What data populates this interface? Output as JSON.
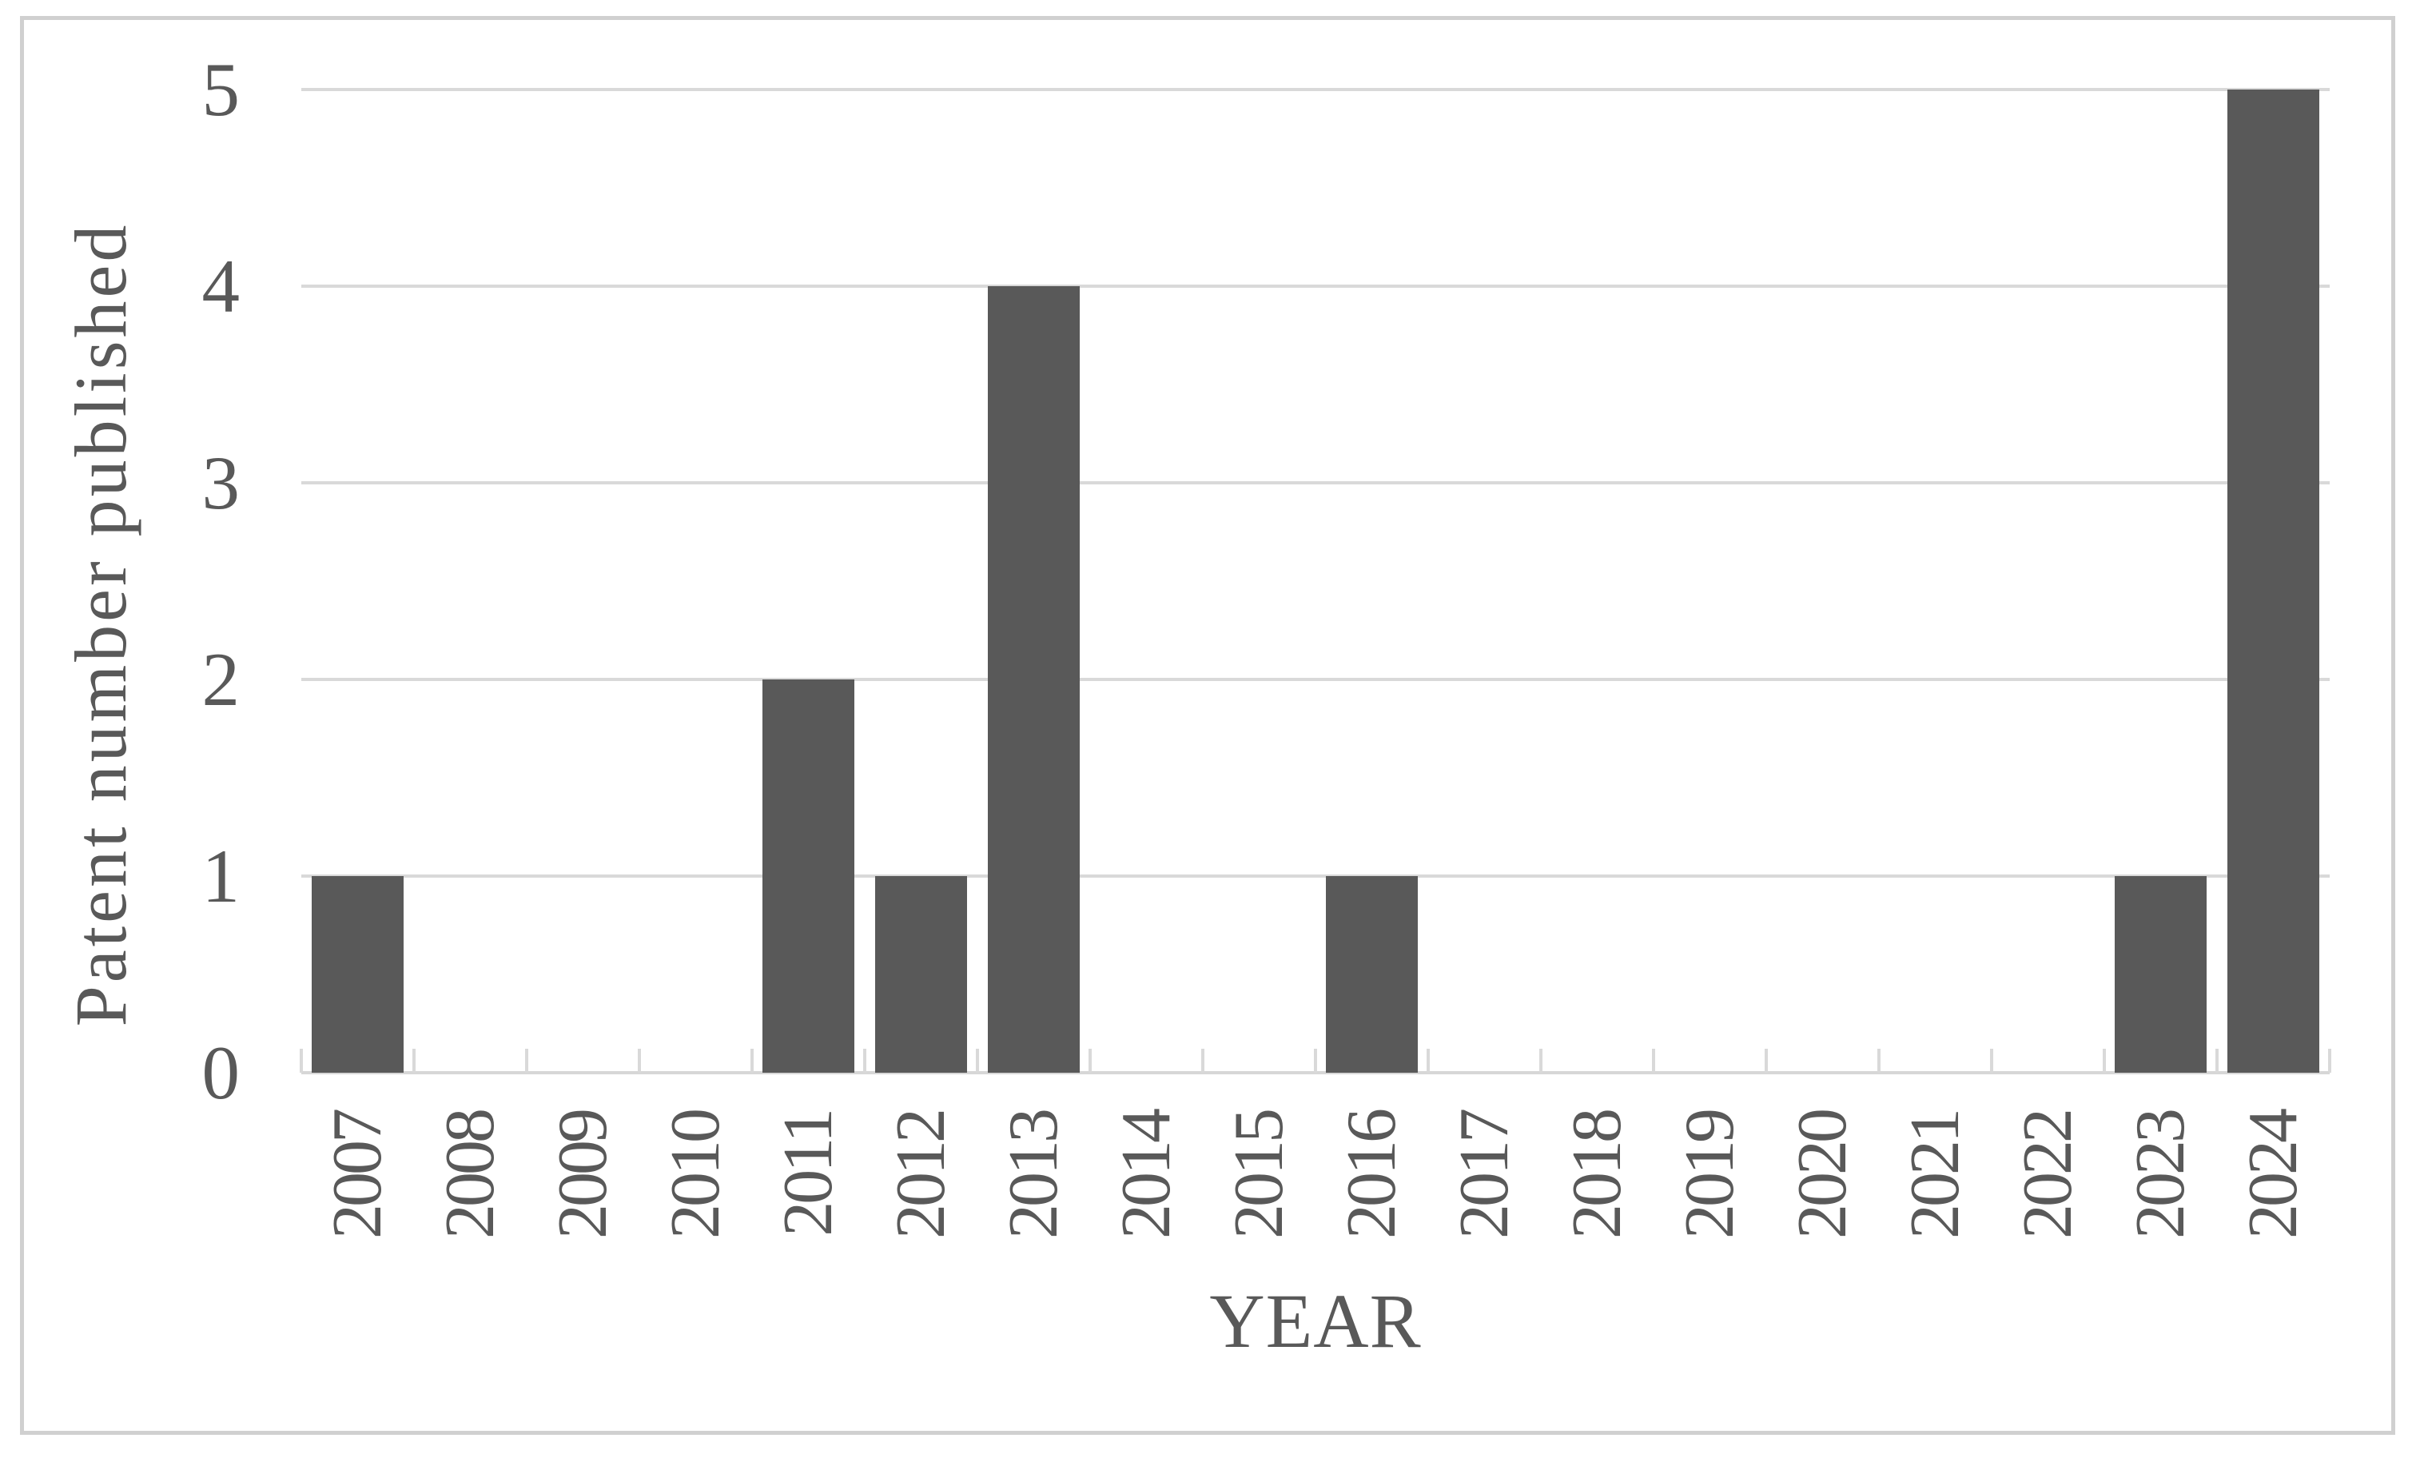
{
  "figure": {
    "background": "#ffffff",
    "border_color": "#d0d0d0"
  },
  "chart_data": {
    "type": "bar",
    "title": "",
    "xlabel": "YEAR",
    "ylabel": "Patent number published",
    "categories": [
      "2007",
      "2008",
      "2009",
      "2010",
      "2011",
      "2012",
      "2013",
      "2014",
      "2015",
      "2016",
      "2017",
      "2018",
      "2019",
      "2020",
      "2021",
      "2022",
      "2023",
      "2024"
    ],
    "values": [
      1,
      0,
      0,
      0,
      2,
      1,
      4,
      0,
      0,
      1,
      0,
      0,
      0,
      0,
      0,
      0,
      1,
      5
    ],
    "ylim": [
      0,
      5
    ],
    "yticks": [
      0,
      1,
      2,
      3,
      4,
      5
    ],
    "grid": "horizontal",
    "legend": "none",
    "bar_color": "#595959",
    "gridline_color": "#d9d9d9",
    "axis_line_color": "#d7d7d7",
    "tick_color": "#d9d9d9",
    "text_color": "#595959"
  }
}
